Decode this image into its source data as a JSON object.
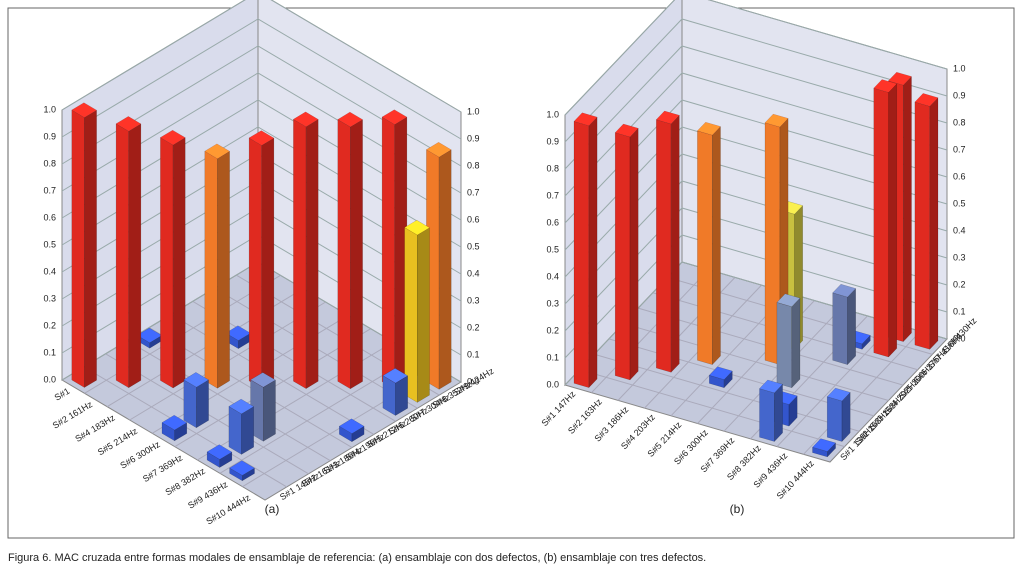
{
  "chart_data": [
    {
      "type": "bar3d",
      "panel_label": "(a)",
      "left_categories": [
        "S#1",
        "S#2 161Hz",
        "S#4 183Hz",
        "S#5 214Hz",
        "S#6 300Hz",
        "S#7 369Hz",
        "S#8 382Hz",
        "S#9 436Hz",
        "S#10 444Hz"
      ],
      "right_categories": [
        "S#1 145Hz",
        "S#2 161Hz",
        "S#3 186Hz",
        "S#4 196Hz",
        "S#5 212Hz",
        "S#6 260Hz",
        "S#7 304Hz",
        "S#8 352Hz",
        "S#9 424Hz"
      ],
      "values": [
        [
          1.0,
          0,
          0,
          0.02,
          0,
          0,
          0,
          0,
          0
        ],
        [
          0,
          0.95,
          0,
          0,
          0,
          0,
          0,
          0,
          0
        ],
        [
          0,
          0,
          0.9,
          0,
          0,
          0.03,
          0,
          0,
          0
        ],
        [
          0,
          0,
          0,
          0.85,
          0,
          0,
          0,
          0,
          0
        ],
        [
          0.04,
          0.15,
          0,
          0,
          0.9,
          0,
          0,
          0,
          0
        ],
        [
          0,
          0,
          0,
          0,
          0,
          0.97,
          0,
          0,
          0
        ],
        [
          0.03,
          0.15,
          0.2,
          0,
          0,
          0,
          0.97,
          0,
          0
        ],
        [
          0.02,
          0,
          0,
          0,
          0,
          0,
          0,
          0.98,
          0.5
        ],
        [
          0,
          0,
          0,
          0,
          0.03,
          0,
          0.12,
          0.62,
          0.86
        ]
      ],
      "zlim": [
        0,
        1
      ],
      "zticks": [
        {
          "value": 0,
          "label": "0.0"
        },
        0.1,
        0.2,
        0.3,
        0.4,
        0.5,
        0.6,
        0.7,
        0.8,
        0.9,
        {
          "value": 1,
          "label": "1.0"
        }
      ],
      "colors": [
        "#3355cc",
        "#4466cc",
        "#6677aa",
        "#7788aa",
        "#a8b860",
        "#c8c040",
        "#e8c020",
        "#f09030",
        "#f07a28",
        "#e02a20"
      ]
    },
    {
      "type": "bar3d",
      "panel_label": "(b)",
      "left_categories": [
        "S#1 147Hz",
        "S#2 163Hz",
        "S#3 186Hz",
        "S#4 203Hz",
        "S#5 214Hz",
        "S#6 300Hz",
        "S#7 369Hz",
        "S#8 382Hz",
        "S#9 436Hz",
        "S#10 444Hz"
      ],
      "right_categories": [
        "S#1 139Hz",
        "S#2 163Hz",
        "S#3 163Hz",
        "S#4 202Hz",
        "S#5 300Hz",
        "S#6 375Hz",
        "S#7 416Hz",
        "S#8 430Hz"
      ],
      "values": [
        [
          0.97,
          0,
          0,
          0,
          0,
          0,
          0,
          0
        ],
        [
          0,
          0.9,
          0,
          0,
          0,
          0,
          0,
          0
        ],
        [
          0,
          0,
          0.92,
          0,
          0,
          0,
          0,
          0
        ],
        [
          0,
          0,
          0,
          0.85,
          0,
          0,
          0,
          0
        ],
        [
          0,
          0,
          0.03,
          0,
          0,
          0,
          0,
          0
        ],
        [
          0,
          0,
          0,
          0,
          0.88,
          0.5,
          0,
          0
        ],
        [
          0,
          0,
          0,
          0.3,
          0,
          0,
          0,
          0
        ],
        [
          0.18,
          0.08,
          0,
          0,
          0,
          0.25,
          0.02,
          0
        ],
        [
          0,
          0,
          0,
          0,
          0,
          0,
          0.98,
          0.95
        ],
        [
          0.02,
          0.15,
          0,
          0,
          0,
          0,
          0,
          0.9
        ]
      ],
      "zlim": [
        0,
        1
      ],
      "zticks": [
        {
          "value": 0,
          "label": "0.0"
        },
        0.1,
        0.2,
        0.3,
        0.4,
        0.5,
        0.6,
        0.7,
        0.8,
        0.9,
        {
          "value": 1,
          "label": "1.0"
        }
      ],
      "colors": [
        "#3355cc",
        "#4466cc",
        "#6677aa",
        "#7788aa",
        "#a8b860",
        "#c8c040",
        "#e8c020",
        "#f09030",
        "#f07a28",
        "#e02a20"
      ]
    }
  ],
  "caption": "Figura 6. MAC cruzada entre formas modales de ensamblaje de referencia: (a) ensamblaje con dos defectos, (b) ensamblaje con tres defectos."
}
